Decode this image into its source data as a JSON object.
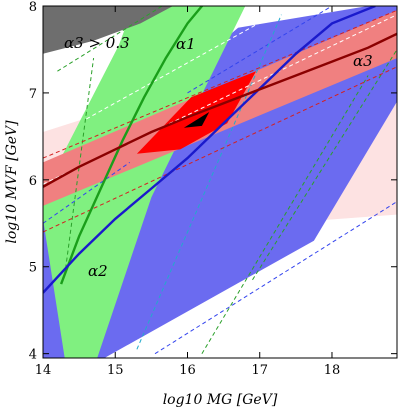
{
  "chart_data": {
    "type": "area",
    "xlabel": "log10 MG [GeV]",
    "ylabel": "log10 MVF [GeV]",
    "xlim": [
      14,
      18.9
    ],
    "ylim": [
      3.95,
      8.0
    ],
    "x_ticks": [
      "14",
      "15",
      "16",
      "17",
      "18"
    ],
    "y_ticks": [
      "4",
      "5",
      "6",
      "7",
      "8"
    ],
    "grid": false,
    "legend": "none",
    "colors": {
      "alpha1": "#1a9e1a",
      "alpha1_band": "#80f080",
      "alpha2": "#1a1acc",
      "alpha2_band": "#6b6bf0",
      "alpha3": "#8b0000",
      "alpha3_band": "#f08080",
      "alpha3_band_light": "#fde2e2",
      "overlap": "#ff0000",
      "excluded": "#6e6e6e",
      "best_fit": "#000000"
    },
    "annotations": {
      "alpha3_exclusion": "α3 > 0.3",
      "alpha1_label": "α1",
      "alpha2_label": "α2",
      "alpha3_label": "α3"
    },
    "regions": [
      {
        "id": "alpha3-band-light",
        "color": "#fde2e2",
        "points": [
          [
            14,
            5.3
          ],
          [
            14,
            6.55
          ],
          [
            18.9,
            7.85
          ],
          [
            18.9,
            5.6
          ]
        ]
      },
      {
        "id": "alpha2-band",
        "color": "#6b6bf0",
        "points": [
          [
            14,
            3.95
          ],
          [
            14,
            5.85
          ],
          [
            16.7,
            7.75
          ],
          [
            18.5,
            8.0
          ],
          [
            18.9,
            8.0
          ],
          [
            18.9,
            6.9
          ],
          [
            17.75,
            5.3
          ],
          [
            14.85,
            3.95
          ]
        ]
      },
      {
        "id": "alpha1-band",
        "color": "#80f080",
        "points": [
          [
            14,
            5.55
          ],
          [
            14,
            5.85
          ],
          [
            15.05,
            7.55
          ],
          [
            15.25,
            8.0
          ],
          [
            16.8,
            8.0
          ],
          [
            15.5,
            5.8
          ],
          [
            14.75,
            3.95
          ],
          [
            14.3,
            3.95
          ]
        ]
      },
      {
        "id": "alpha3-band",
        "color": "#f08080",
        "points": [
          [
            14,
            5.7
          ],
          [
            14,
            6.2
          ],
          [
            18.9,
            7.95
          ],
          [
            18.9,
            7.4
          ]
        ]
      },
      {
        "id": "overlap-region",
        "color": "#ff0000",
        "points": [
          [
            15.3,
            6.3
          ],
          [
            16.05,
            6.95
          ],
          [
            16.95,
            7.25
          ],
          [
            16.55,
            6.65
          ],
          [
            15.9,
            6.35
          ]
        ]
      },
      {
        "id": "alpha3-excluded",
        "color": "#6e6e6e",
        "points": [
          [
            14,
            7.45
          ],
          [
            14,
            8.0
          ],
          [
            15.8,
            8.0
          ],
          [
            15.35,
            7.8
          ],
          [
            14.7,
            7.6
          ]
        ]
      },
      {
        "id": "best-fit-spot",
        "color": "#000000",
        "points": [
          [
            15.95,
            6.6
          ],
          [
            16.3,
            6.78
          ],
          [
            16.2,
            6.62
          ]
        ]
      }
    ],
    "series": [
      {
        "name": "α1",
        "style": "solid",
        "color": "#1a9e1a",
        "x": [
          14.25,
          14.5,
          14.8,
          15.1,
          15.4,
          15.7,
          16.0,
          16.3,
          16.55
        ],
        "y": [
          4.8,
          5.35,
          5.9,
          6.45,
          6.95,
          7.4,
          7.8,
          8.1,
          8.35
        ]
      },
      {
        "name": "α2",
        "style": "solid",
        "color": "#1a1acc",
        "x": [
          14,
          14.5,
          15,
          15.5,
          16,
          16.5,
          17,
          17.5,
          18,
          18.6
        ],
        "y": [
          4.7,
          5.15,
          5.55,
          5.9,
          6.25,
          6.65,
          7.05,
          7.45,
          7.8,
          8.0
        ]
      },
      {
        "name": "α3",
        "style": "solid",
        "color": "#8b0000",
        "x": [
          14,
          14.5,
          15,
          15.5,
          16,
          16.5,
          17,
          17.5,
          18,
          18.5,
          18.9
        ],
        "y": [
          5.92,
          6.15,
          6.35,
          6.55,
          6.72,
          6.88,
          7.04,
          7.2,
          7.36,
          7.52,
          7.68
        ]
      },
      {
        "id": "green-dashed-left",
        "style": "dashed",
        "color": "#2aa02a",
        "x": [
          14.3,
          14.7
        ],
        "y": [
          4.9,
          7.4
        ]
      },
      {
        "id": "green-dashed-top",
        "style": "dashed",
        "color": "#2aa02a",
        "x": [
          14.2,
          15.65
        ],
        "y": [
          7.25,
          8.0
        ]
      },
      {
        "id": "green-dashed-right-1",
        "style": "dashed",
        "color": "#2aa02a",
        "x": [
          16.2,
          18.5
        ],
        "y": [
          4.0,
          7.2
        ]
      },
      {
        "id": "green-dashed-right-2",
        "style": "dashed",
        "color": "#2aa02a",
        "x": [
          16.9,
          18.9
        ],
        "y": [
          4.85,
          7.5
        ]
      },
      {
        "id": "blue-dashed-top",
        "style": "dashed",
        "color": "#3344ee",
        "x": [
          16.0,
          18.0
        ],
        "y": [
          7.0,
          8.0
        ]
      },
      {
        "id": "blue-dashed-left",
        "style": "dashed",
        "color": "#3344ee",
        "x": [
          14,
          15.2
        ],
        "y": [
          5.5,
          6.2
        ]
      },
      {
        "id": "blue-dashed-bottom",
        "style": "dashed",
        "color": "#3344ee",
        "x": [
          15.55,
          18.9
        ],
        "y": [
          4.0,
          5.75
        ]
      },
      {
        "id": "cyan-dashed",
        "style": "dashed",
        "color": "#22aacc",
        "x": [
          15.3,
          17.3
        ],
        "y": [
          4.05,
          7.9
        ]
      },
      {
        "id": "white-dashed-1",
        "style": "dashed",
        "color": "#ffffff",
        "x": [
          14,
          18.9
        ],
        "y": [
          5.95,
          7.9
        ]
      },
      {
        "id": "white-dashed-2",
        "style": "dashed",
        "color": "#ffffff",
        "x": [
          14.6,
          17.2
        ],
        "y": [
          6.7,
          7.9
        ]
      },
      {
        "id": "red-dashed-upper",
        "style": "dashed",
        "color": "#d42020",
        "x": [
          14,
          18.9
        ],
        "y": [
          6.25,
          7.95
        ]
      },
      {
        "id": "red-dashed-lower",
        "style": "dashed",
        "color": "#d42020",
        "x": [
          14,
          18.9
        ],
        "y": [
          5.4,
          7.3
        ]
      }
    ]
  }
}
